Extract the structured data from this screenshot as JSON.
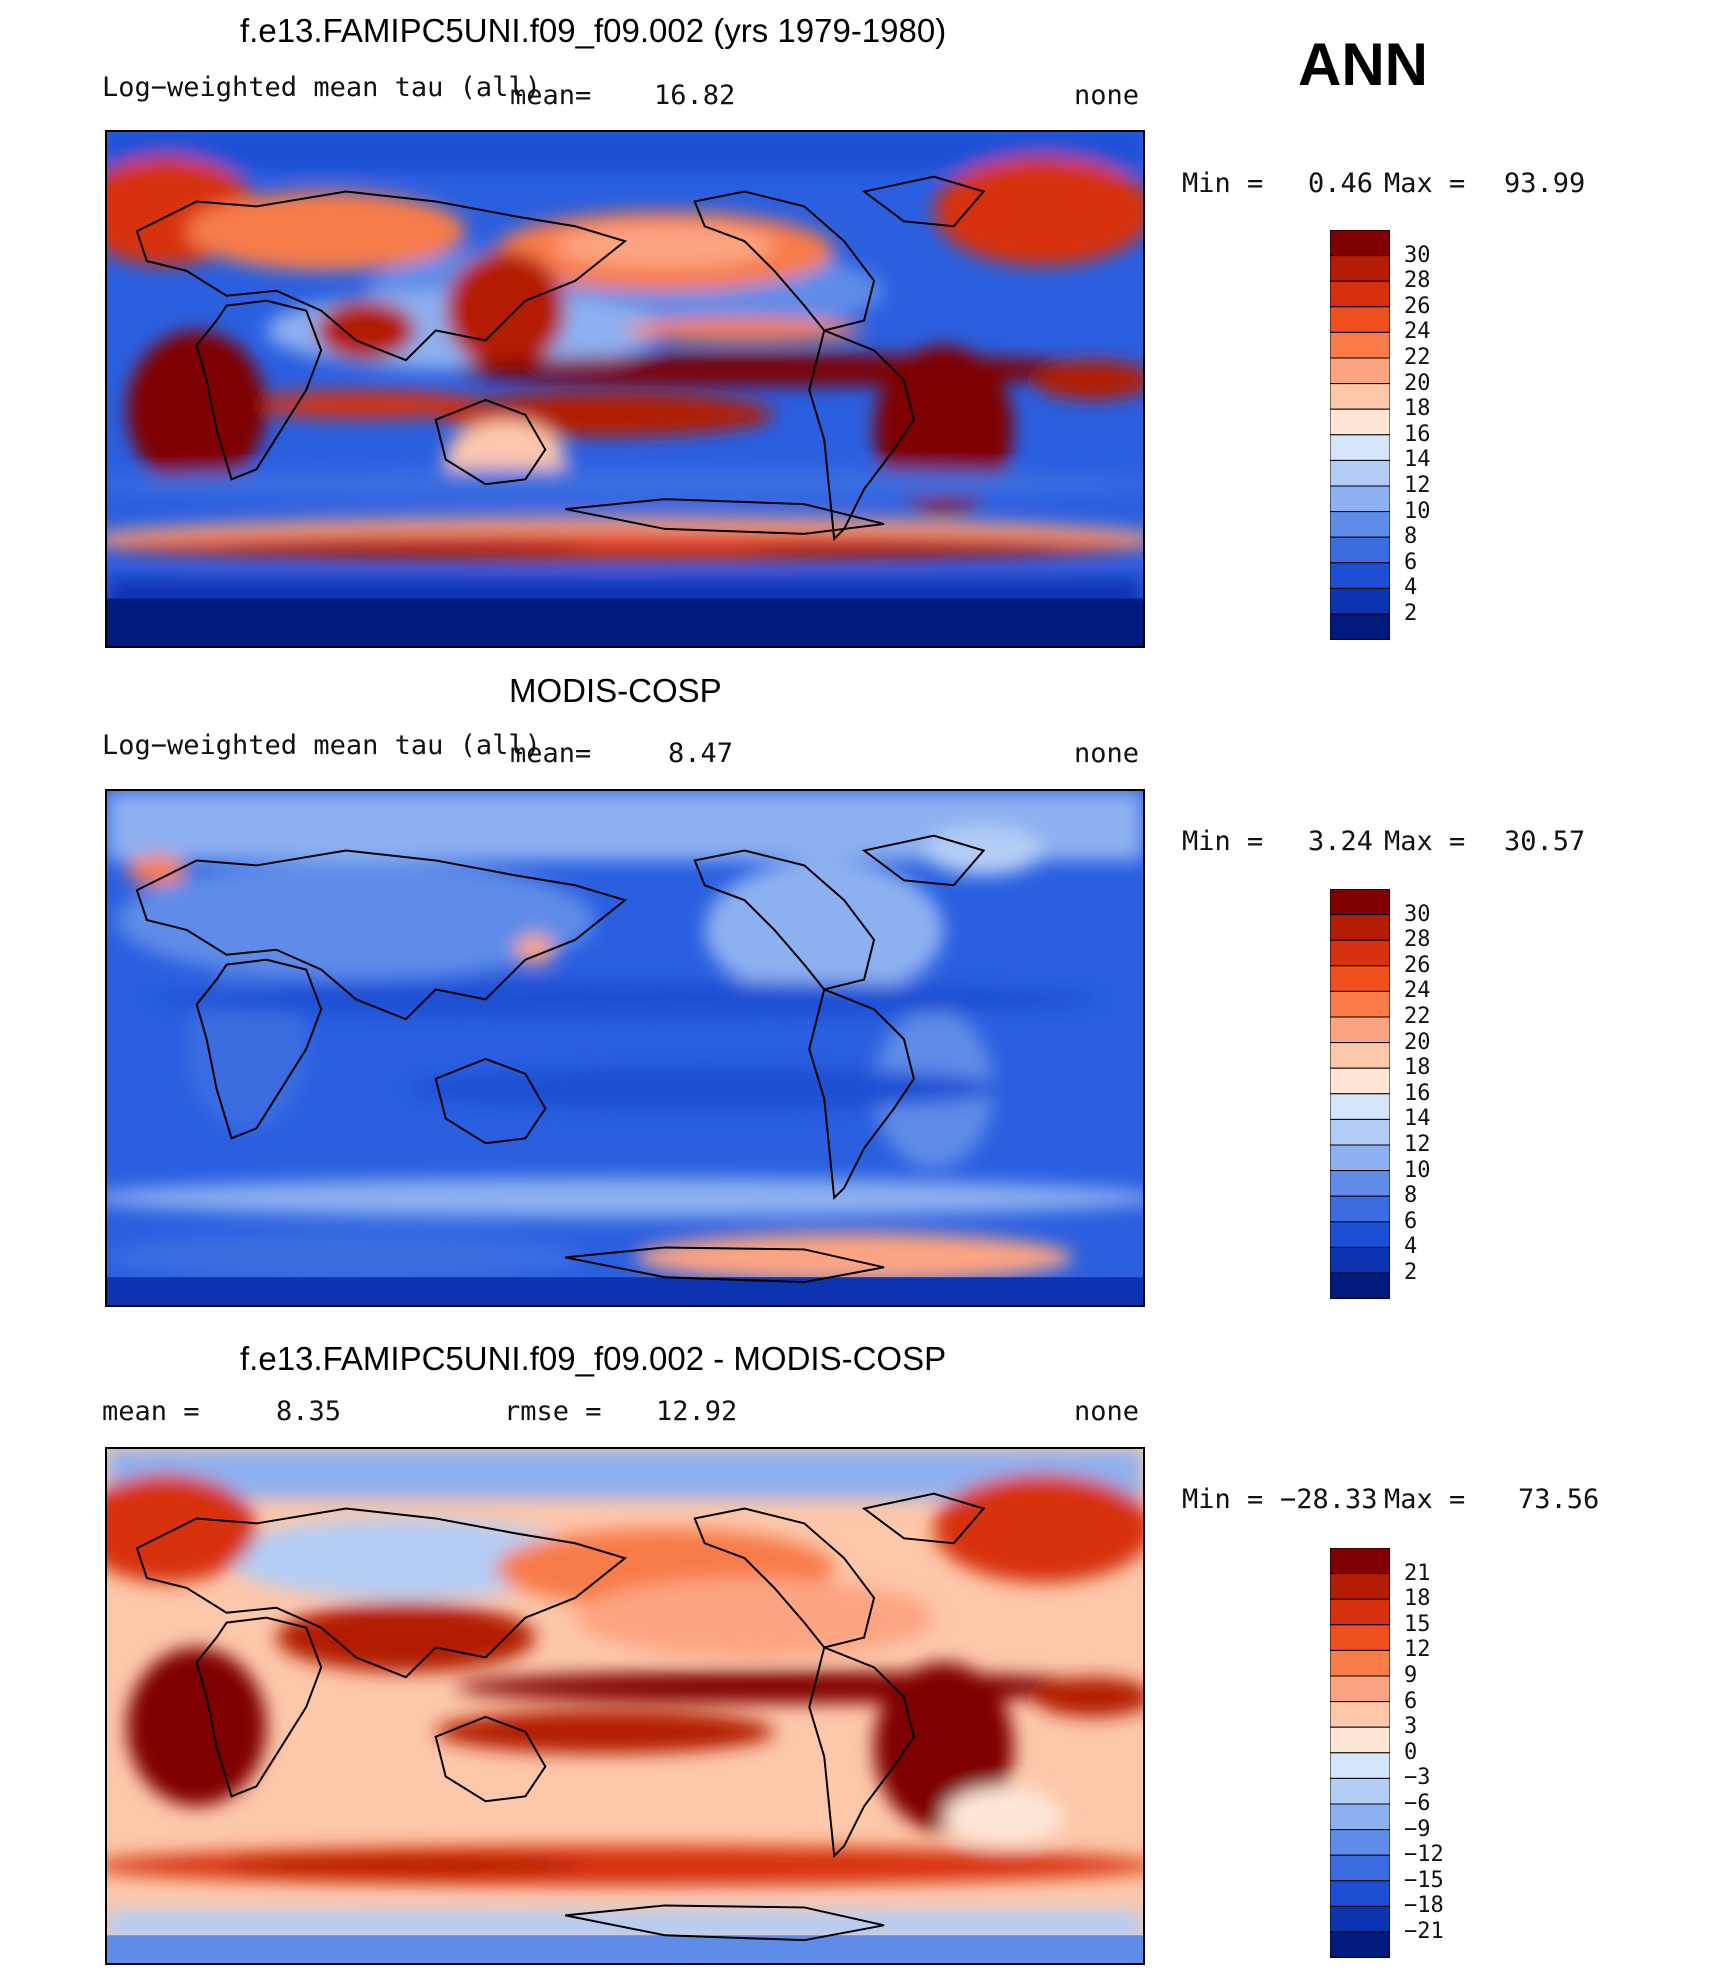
{
  "annotation": "ANN",
  "panels": [
    {
      "title": "f.e13.FAMIPC5UNI.f09_f09.002 (yrs 1979-1980)",
      "variable": "Log−weighted mean tau (all)",
      "mean_label": "mean=",
      "mean_value": "16.82",
      "rmse_label": "",
      "rmse_value": "",
      "units": "none",
      "min_label": "Min =",
      "min_value": "0.46",
      "max_label": "Max =",
      "max_value": "93.99",
      "colorbar_labels": [
        "30",
        "28",
        "26",
        "24",
        "22",
        "20",
        "18",
        "16",
        "14",
        "12",
        "10",
        "8",
        "6",
        "4",
        "2"
      ],
      "colorbar_colors": [
        "#7f0000",
        "#b31d06",
        "#d7300f",
        "#f0501e",
        "#f87b48",
        "#fca482",
        "#fdc7aa",
        "#fde6d6",
        "#d6e6fa",
        "#b3cdf5",
        "#8db0f0",
        "#5f8ce8",
        "#3b6de0",
        "#1c4fd4",
        "#0c33b0",
        "#001a80"
      ],
      "map_style": "model"
    },
    {
      "title": "MODIS-COSP",
      "variable": "Log−weighted mean tau (all)",
      "mean_label": "mean=",
      "mean_value": "8.47",
      "rmse_label": "",
      "rmse_value": "",
      "units": "none",
      "min_label": "Min =",
      "min_value": "3.24",
      "max_label": "Max =",
      "max_value": "30.57",
      "colorbar_labels": [
        "30",
        "28",
        "26",
        "24",
        "22",
        "20",
        "18",
        "16",
        "14",
        "12",
        "10",
        "8",
        "6",
        "4",
        "2"
      ],
      "colorbar_colors": [
        "#7f0000",
        "#b31d06",
        "#d7300f",
        "#f0501e",
        "#f87b48",
        "#fca482",
        "#fdc7aa",
        "#fde6d6",
        "#d6e6fa",
        "#b3cdf5",
        "#8db0f0",
        "#5f8ce8",
        "#3b6de0",
        "#1c4fd4",
        "#0c33b0",
        "#001a80"
      ],
      "map_style": "obs"
    },
    {
      "title": "f.e13.FAMIPC5UNI.f09_f09.002 - MODIS-COSP",
      "variable": "",
      "mean_label": "mean =",
      "mean_value": "8.35",
      "rmse_label": "rmse =",
      "rmse_value": "12.92",
      "units": "none",
      "min_label": "Min =",
      "min_value": "−28.33",
      "max_label": "Max =",
      "max_value": "73.56",
      "colorbar_labels": [
        "21",
        "18",
        "15",
        "12",
        "9",
        "6",
        "3",
        "0",
        "−3",
        "−6",
        "−9",
        "−12",
        "−15",
        "−18",
        "−21"
      ],
      "colorbar_colors": [
        "#7f0000",
        "#b31d06",
        "#d7300f",
        "#f0501e",
        "#f87b48",
        "#fca482",
        "#fdc7aa",
        "#fde6d6",
        "#d6e6fa",
        "#b3cdf5",
        "#8db0f0",
        "#5f8ce8",
        "#3b6de0",
        "#1c4fd4",
        "#0c33b0",
        "#001a80"
      ],
      "map_style": "diff"
    }
  ],
  "chart_data": [
    {
      "type": "heatmap",
      "title": "f.e13.FAMIPC5UNI.f09_f09.002 (yrs 1979-1980)",
      "variable": "Log-weighted mean tau (all)",
      "units": "none",
      "mean": 16.82,
      "min": 0.46,
      "max": 93.99,
      "levels": [
        2,
        4,
        6,
        8,
        10,
        12,
        14,
        16,
        18,
        20,
        22,
        24,
        26,
        28,
        30
      ],
      "season": "ANN"
    },
    {
      "type": "heatmap",
      "title": "MODIS-COSP",
      "variable": "Log-weighted mean tau (all)",
      "units": "none",
      "mean": 8.47,
      "min": 3.24,
      "max": 30.57,
      "levels": [
        2,
        4,
        6,
        8,
        10,
        12,
        14,
        16,
        18,
        20,
        22,
        24,
        26,
        28,
        30
      ],
      "season": "ANN"
    },
    {
      "type": "heatmap",
      "title": "f.e13.FAMIPC5UNI.f09_f09.002 - MODIS-COSP",
      "units": "none",
      "mean": 8.35,
      "rmse": 12.92,
      "min": -28.33,
      "max": 73.56,
      "levels": [
        -21,
        -18,
        -15,
        -12,
        -9,
        -6,
        -3,
        0,
        3,
        6,
        9,
        12,
        15,
        18,
        21
      ],
      "season": "ANN"
    }
  ]
}
